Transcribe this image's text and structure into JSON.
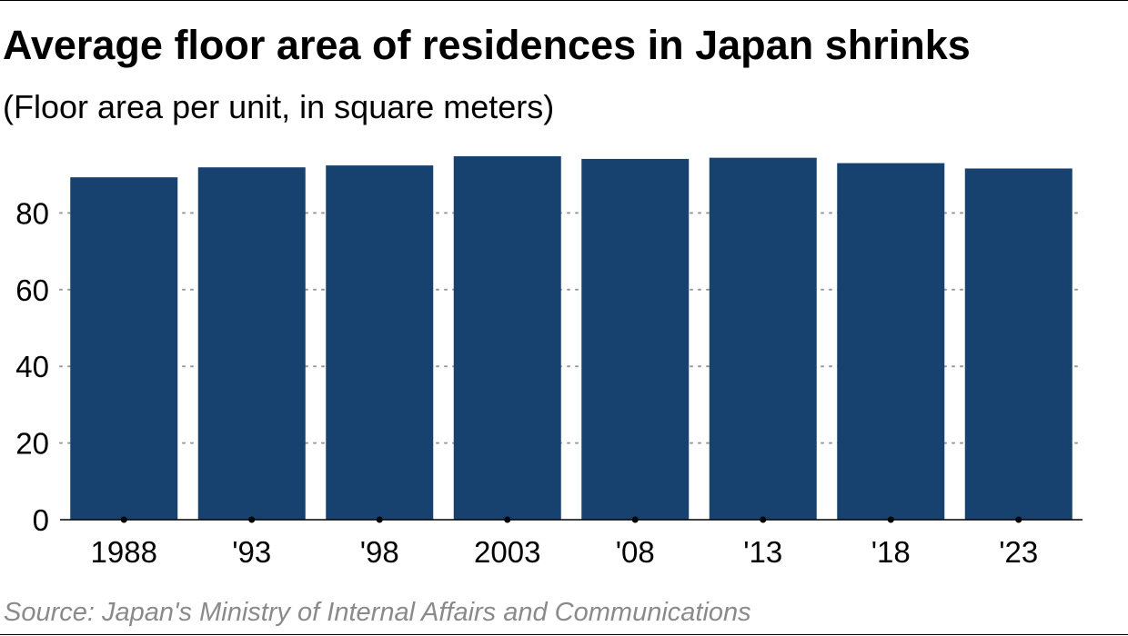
{
  "title": "Average floor area of residences in Japan shrinks",
  "subtitle": "(Floor area per unit, in square meters)",
  "source": "Source: Japan's Ministry of Internal Affairs and Communications",
  "chart_data": {
    "type": "bar",
    "categories": [
      "1988",
      "'93",
      "'98",
      "2003",
      "'08",
      "'13",
      "'18",
      "'23"
    ],
    "values": [
      89.3,
      91.9,
      92.4,
      94.8,
      94.1,
      94.4,
      93.0,
      91.6
    ],
    "ylim": [
      0,
      100
    ],
    "yticks": [
      0,
      20,
      40,
      60,
      80
    ],
    "ytick_labels": [
      "0",
      "20",
      "40",
      "60",
      "80"
    ],
    "grid": true,
    "bar_color": "#17426f",
    "grid_color": "#9a9a9a"
  }
}
